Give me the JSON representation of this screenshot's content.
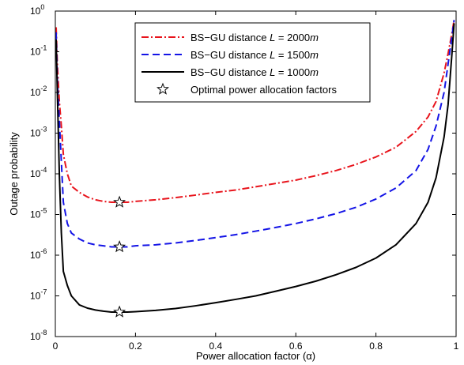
{
  "chart_data": {
    "type": "line",
    "xlabel": "Power allocation factor (α)",
    "ylabel": "Outage probability",
    "xlim": [
      0,
      1
    ],
    "ylim": [
      1e-08,
      1
    ],
    "yscale": "log",
    "grid": false,
    "legend_position": "top-right",
    "x_ticks": [
      {
        "value": 0,
        "label": "0"
      },
      {
        "value": 0.2,
        "label": "0.2"
      },
      {
        "value": 0.4,
        "label": "0.4"
      },
      {
        "value": 0.6,
        "label": "0.6"
      },
      {
        "value": 0.8,
        "label": "0.8"
      },
      {
        "value": 1,
        "label": "1"
      }
    ],
    "y_ticks": [
      {
        "value": 1,
        "base": "10",
        "exp": "0"
      },
      {
        "value": 0.1,
        "base": "10",
        "exp": "-1"
      },
      {
        "value": 0.01,
        "base": "10",
        "exp": "-2"
      },
      {
        "value": 0.001,
        "base": "10",
        "exp": "-3"
      },
      {
        "value": 0.0001,
        "base": "10",
        "exp": "-4"
      },
      {
        "value": 1e-05,
        "base": "10",
        "exp": "-5"
      },
      {
        "value": 1e-06,
        "base": "10",
        "exp": "-6"
      },
      {
        "value": 1e-07,
        "base": "10",
        "exp": "-7"
      },
      {
        "value": 1e-08,
        "base": "10",
        "exp": "-8"
      }
    ],
    "series": [
      {
        "name_parts": [
          "BS−GU distance ",
          "L",
          " = 2000",
          "m"
        ],
        "color": "#e8141c",
        "dash": "9,3,2,3",
        "x": [
          0.002,
          0.005,
          0.01,
          0.015,
          0.02,
          0.03,
          0.04,
          0.06,
          0.08,
          0.1,
          0.12,
          0.14,
          0.16,
          0.18,
          0.2,
          0.25,
          0.3,
          0.35,
          0.4,
          0.45,
          0.5,
          0.55,
          0.6,
          0.65,
          0.7,
          0.75,
          0.8,
          0.85,
          0.9,
          0.93,
          0.95,
          0.97,
          0.98,
          0.99,
          0.995
        ],
        "y": [
          0.4,
          0.05,
          0.006,
          0.0015,
          0.0003,
          0.0001,
          5e-05,
          3.5e-05,
          2.7e-05,
          2.3e-05,
          2.1e-05,
          2e-05,
          2e-05,
          2e-05,
          2.1e-05,
          2.3e-05,
          2.6e-05,
          3e-05,
          3.5e-05,
          4e-05,
          4.8e-05,
          5.8e-05,
          7e-05,
          9e-05,
          0.00012,
          0.00017,
          0.00026,
          0.00045,
          0.0011,
          0.0025,
          0.006,
          0.03,
          0.09,
          0.3,
          0.6
        ]
      },
      {
        "name_parts": [
          "BS−GU distance ",
          "L",
          " = 1500",
          "m"
        ],
        "color": "#1414e6",
        "dash": "9,5",
        "x": [
          0.002,
          0.005,
          0.01,
          0.015,
          0.02,
          0.03,
          0.04,
          0.06,
          0.08,
          0.1,
          0.12,
          0.14,
          0.16,
          0.18,
          0.2,
          0.25,
          0.3,
          0.35,
          0.4,
          0.45,
          0.5,
          0.55,
          0.6,
          0.65,
          0.7,
          0.75,
          0.8,
          0.85,
          0.9,
          0.93,
          0.95,
          0.97,
          0.98,
          0.99,
          0.995
        ],
        "y": [
          0.3,
          0.02,
          0.002,
          0.0002,
          2e-05,
          6e-06,
          3.5e-06,
          2.5e-06,
          2e-06,
          1.8e-06,
          1.7e-06,
          1.6e-06,
          1.6e-06,
          1.6e-06,
          1.7e-06,
          1.8e-06,
          2e-06,
          2.3e-06,
          2.7e-06,
          3.2e-06,
          3.9e-06,
          4.8e-06,
          6e-06,
          7.8e-06,
          1.05e-05,
          1.5e-05,
          2.4e-05,
          4.5e-05,
          0.00012,
          0.0004,
          0.0015,
          0.01,
          0.05,
          0.25,
          0.6
        ]
      },
      {
        "name_parts": [
          "BS−GU distance ",
          "L",
          " = 1000",
          "m"
        ],
        "color": "#000000",
        "dash": "",
        "x": [
          0.002,
          0.005,
          0.01,
          0.015,
          0.02,
          0.03,
          0.04,
          0.06,
          0.08,
          0.1,
          0.12,
          0.14,
          0.16,
          0.18,
          0.2,
          0.25,
          0.3,
          0.35,
          0.4,
          0.45,
          0.5,
          0.55,
          0.6,
          0.65,
          0.7,
          0.75,
          0.8,
          0.85,
          0.9,
          0.93,
          0.95,
          0.97,
          0.98,
          0.99,
          0.995
        ],
        "y": [
          0.2,
          0.01,
          0.0001,
          3.5e-06,
          4e-07,
          1.8e-07,
          1e-07,
          6e-08,
          5e-08,
          4.5e-08,
          4.2e-08,
          4e-08,
          4e-08,
          4e-08,
          4.1e-08,
          4.4e-08,
          4.9e-08,
          5.7e-08,
          6.8e-08,
          8.2e-08,
          1e-07,
          1.3e-07,
          1.7e-07,
          2.3e-07,
          3.3e-07,
          5e-07,
          8.5e-07,
          1.8e-06,
          6e-06,
          2e-05,
          8e-05,
          0.0008,
          0.005,
          0.1,
          0.5
        ]
      }
    ],
    "markers": {
      "name": "Optimal power allocation factors",
      "symbol": "star",
      "points": [
        {
          "x": 0.16,
          "y": 2e-05
        },
        {
          "x": 0.16,
          "y": 1.6e-06
        },
        {
          "x": 0.16,
          "y": 4e-08
        }
      ]
    }
  }
}
